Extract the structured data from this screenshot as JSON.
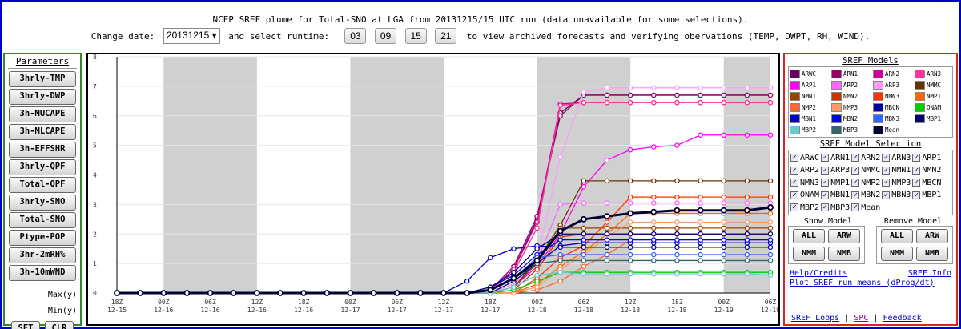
{
  "header": {
    "title": "NCEP SREF plume for Total-SNO at LGA from 20131215/15 UTC run (data unavailable for some selections).",
    "change_date_label": "Change date:",
    "date_value": "20131215",
    "select_runtime_label": "and select runtime:",
    "runtimes": [
      "03",
      "09",
      "15",
      "21"
    ],
    "trailing_text": "to view archived forecasts and verifying obervations (TEMP, DWPT, RH, WIND)."
  },
  "left_panel": {
    "heading": "Parameters",
    "buttons": [
      "3hrly-TMP",
      "3hrly-DWP",
      "3h-MUCAPE",
      "3h-MLCAPE",
      "3h-EFFSHR",
      "3hrly-QPF",
      "Total-QPF",
      "3hrly-SNO",
      "Total-SNO",
      "Ptype-POP",
      "3hr-2mRH%",
      "3h-10mWND"
    ],
    "max_label": "Max(y)",
    "min_label": "Min(y)",
    "set_label": "SET",
    "clr_label": "CLR"
  },
  "right_panel": {
    "models_heading": "SREF Models",
    "legend": [
      {
        "name": "ARWC",
        "color": "#660066"
      },
      {
        "name": "ARN1",
        "color": "#990066"
      },
      {
        "name": "ARN2",
        "color": "#cc0099"
      },
      {
        "name": "ARN3",
        "color": "#ff3399"
      },
      {
        "name": "ARP1",
        "color": "#ff00ff"
      },
      {
        "name": "ARP2",
        "color": "#ff66ff"
      },
      {
        "name": "ARP3",
        "color": "#ff99ff"
      },
      {
        "name": "NMMC",
        "color": "#663300"
      },
      {
        "name": "NMN1",
        "color": "#994400"
      },
      {
        "name": "NMN2",
        "color": "#cc3300"
      },
      {
        "name": "NMN3",
        "color": "#ff3300"
      },
      {
        "name": "NMP1",
        "color": "#ff6600"
      },
      {
        "name": "NMP2",
        "color": "#ff6633"
      },
      {
        "name": "NMP3",
        "color": "#ff9966"
      },
      {
        "name": "MBCN",
        "color": "#000099"
      },
      {
        "name": "ONAM",
        "color": "#00cc00"
      },
      {
        "name": "MBN1",
        "color": "#0000cc"
      },
      {
        "name": "MBN2",
        "color": "#0000ff"
      },
      {
        "name": "MBN3",
        "color": "#3366ff"
      },
      {
        "name": "MBP1",
        "color": "#000066"
      },
      {
        "name": "MBP2",
        "color": "#66cccc"
      },
      {
        "name": "MBP3",
        "color": "#336666"
      },
      {
        "name": "Mean",
        "color": "#000033"
      }
    ],
    "selection_heading": "SREF Model Selection",
    "selection": [
      "ARWC",
      "ARN1",
      "ARN2",
      "ARN3",
      "ARP1",
      "ARP2",
      "ARP3",
      "NMMC",
      "NMN1",
      "NMN2",
      "NMN3",
      "NMP1",
      "NMP2",
      "NMP3",
      "MBCN",
      "ONAM",
      "MBN1",
      "MBN2",
      "MBN3",
      "MBP1",
      "MBP2",
      "MBP3",
      "Mean"
    ],
    "show_model_label": "Show Model",
    "remove_model_label": "Remove Model",
    "show_buttons": [
      "ALL",
      "ARW",
      "NMM",
      "NMB"
    ],
    "remove_buttons": [
      "ALL",
      "ARW",
      "NMM",
      "NMB"
    ],
    "help_link": "Help/Credits",
    "sref_info_link": "SREF Info",
    "plot_means_link": "Plot SREF run means (dProg/dt)",
    "loops_link": "SREF Loops",
    "spc_link": "SPC",
    "feedback_link": "Feedback",
    "sep": "|"
  },
  "chart_data": {
    "type": "line",
    "ylim": [
      0,
      8
    ],
    "ytick_labels": [
      "0",
      "1",
      "2",
      "3",
      "4",
      "5",
      "6",
      "7",
      "8"
    ],
    "x_tick_labels": [
      [
        "18Z",
        "12-15"
      ],
      [
        "00Z",
        "12-16"
      ],
      [
        "06Z",
        "12-16"
      ],
      [
        "12Z",
        "12-16"
      ],
      [
        "18Z",
        "12-16"
      ],
      [
        "00Z",
        "12-17"
      ],
      [
        "06Z",
        "12-17"
      ],
      [
        "12Z",
        "12-17"
      ],
      [
        "18Z",
        "12-17"
      ],
      [
        "00Z",
        "12-18"
      ],
      [
        "06Z",
        "12-18"
      ],
      [
        "12Z",
        "12-18"
      ],
      [
        "18Z",
        "12-18"
      ],
      [
        "00Z",
        "12-19"
      ],
      [
        "06Z",
        "12-19"
      ]
    ],
    "night_shading": [
      [
        1,
        3
      ],
      [
        5,
        7
      ],
      [
        9,
        11
      ],
      [
        13,
        14
      ]
    ],
    "x_count": 29,
    "grid": true,
    "series": [
      {
        "name": "ARWC",
        "color": "#660066",
        "values": [
          0,
          0,
          0,
          0,
          0,
          0,
          0,
          0,
          0,
          0,
          0,
          0,
          0,
          0,
          0,
          0,
          0.1,
          0.8,
          2.5,
          6.1,
          6.7,
          6.7,
          6.7,
          6.7,
          6.7,
          6.7,
          6.7,
          6.7,
          6.7
        ]
      },
      {
        "name": "ARN1",
        "color": "#990066",
        "values": [
          0,
          0,
          0,
          0,
          0,
          0,
          0,
          0,
          0,
          0,
          0,
          0,
          0,
          0,
          0,
          0,
          0.1,
          0.9,
          2.6,
          6.0,
          6.7,
          6.7,
          6.7,
          6.7,
          6.7,
          6.7,
          6.7,
          6.7,
          6.7
        ]
      },
      {
        "name": "ARN2",
        "color": "#cc0099",
        "values": [
          0,
          0,
          0,
          0,
          0,
          0,
          0,
          0,
          0,
          0,
          0,
          0,
          0,
          0,
          0,
          0,
          0.1,
          0.8,
          2.4,
          6.4,
          6.45,
          6.45,
          6.45,
          6.45,
          6.45,
          6.45,
          6.45,
          6.45,
          6.45
        ]
      },
      {
        "name": "ARN3",
        "color": "#ff3399",
        "values": [
          0,
          0,
          0,
          0,
          0,
          0,
          0,
          0,
          0,
          0,
          0,
          0,
          0,
          0,
          0,
          0,
          0.1,
          0.7,
          2.2,
          6.35,
          6.45,
          6.45,
          6.45,
          6.45,
          6.45,
          6.45,
          6.45,
          6.45,
          6.45
        ]
      },
      {
        "name": "ARP1",
        "color": "#ff00ff",
        "values": [
          0,
          0,
          0,
          0,
          0,
          0,
          0,
          0,
          0,
          0,
          0,
          0,
          0,
          0,
          0,
          0,
          0,
          0.2,
          0.9,
          2.0,
          3.6,
          4.5,
          4.85,
          4.95,
          5.0,
          5.35,
          5.35,
          5.35,
          5.35
        ]
      },
      {
        "name": "ARP2",
        "color": "#ff66ff",
        "values": [
          0,
          0,
          0,
          0,
          0,
          0,
          0,
          0,
          0,
          0,
          0,
          0,
          0,
          0,
          0,
          0,
          0,
          0.3,
          1.1,
          3.0,
          3.05,
          3.05,
          3.05,
          3.05,
          3.05,
          3.05,
          3.05,
          3.05,
          3.05
        ]
      },
      {
        "name": "ARP3",
        "color": "#ff99ff",
        "values": [
          0,
          0,
          0,
          0,
          0,
          0,
          0,
          0,
          0,
          0,
          0,
          0,
          0,
          0,
          0,
          0,
          0,
          0.3,
          1.2,
          4.6,
          6.8,
          6.95,
          6.95,
          6.95,
          6.95,
          6.95,
          6.95,
          6.95,
          6.95
        ]
      },
      {
        "name": "NMMC",
        "color": "#663300",
        "values": [
          0,
          0,
          0,
          0,
          0,
          0,
          0,
          0,
          0,
          0,
          0,
          0,
          0,
          0,
          0,
          0,
          0,
          0.2,
          1.1,
          2.3,
          3.8,
          3.8,
          3.8,
          3.8,
          3.8,
          3.8,
          3.8,
          3.8,
          3.8
        ]
      },
      {
        "name": "NMN1",
        "color": "#994400",
        "values": [
          0,
          0,
          0,
          0,
          0,
          0,
          0,
          0,
          0,
          0,
          0,
          0,
          0,
          0,
          0,
          0,
          0,
          0.2,
          1.0,
          2.2,
          2.2,
          2.2,
          2.2,
          2.2,
          2.2,
          2.2,
          2.2,
          2.2,
          2.2
        ]
      },
      {
        "name": "NMN2",
        "color": "#cc3300",
        "values": [
          0,
          0,
          0,
          0,
          0,
          0,
          0,
          0,
          0,
          0,
          0,
          0,
          0,
          0,
          0,
          0,
          0,
          0.1,
          0.8,
          1.9,
          2.0,
          2.0,
          2.0,
          2.0,
          2.0,
          2.0,
          2.0,
          2.0,
          2.0
        ]
      },
      {
        "name": "NMN3",
        "color": "#ff3300",
        "values": [
          0,
          0,
          0,
          0,
          0,
          0,
          0,
          0,
          0,
          0,
          0,
          0,
          0,
          0,
          0,
          0,
          0,
          0,
          0.5,
          1.2,
          1.6,
          2.4,
          3.25,
          3.25,
          3.25,
          3.25,
          3.25,
          3.25,
          3.25
        ]
      },
      {
        "name": "NMP1",
        "color": "#ff6600",
        "values": [
          0,
          0,
          0,
          0,
          0,
          0,
          0,
          0,
          0,
          0,
          0,
          0,
          0,
          0,
          0,
          0,
          0,
          0,
          0.3,
          0.9,
          1.4,
          2.0,
          2.7,
          2.7,
          2.7,
          2.7,
          2.7,
          2.7,
          2.7
        ]
      },
      {
        "name": "NMP2",
        "color": "#ff6633",
        "values": [
          0,
          0,
          0,
          0,
          0,
          0,
          0,
          0,
          0,
          0,
          0,
          0,
          0,
          0,
          0,
          0,
          0,
          0,
          0.1,
          0.4,
          0.9,
          1.3,
          1.8,
          1.8,
          1.8,
          1.8,
          1.8,
          1.8,
          1.8
        ]
      },
      {
        "name": "NMP3",
        "color": "#ff9966",
        "values": [
          0,
          0,
          0,
          0,
          0,
          0,
          0,
          0,
          0,
          0,
          0,
          0,
          0,
          0,
          0,
          0,
          0,
          0,
          0.2,
          0.8,
          1.3,
          1.9,
          2.4,
          2.4,
          2.4,
          2.4,
          2.4,
          2.4,
          2.4
        ]
      },
      {
        "name": "MBCN",
        "color": "#000099",
        "values": [
          0,
          0,
          0,
          0,
          0,
          0,
          0,
          0,
          0,
          0,
          0,
          0,
          0,
          0,
          0,
          0,
          0,
          0.4,
          1.0,
          1.6,
          1.7,
          1.7,
          1.7,
          1.7,
          1.7,
          1.7,
          1.7,
          1.7,
          1.7
        ]
      },
      {
        "name": "ONAM",
        "color": "#00cc00",
        "values": [
          0,
          0,
          0,
          0,
          0,
          0,
          0,
          0,
          0,
          0,
          0,
          0,
          0,
          0,
          0,
          0,
          0,
          0.1,
          0.4,
          0.7,
          0.7,
          0.7,
          0.7,
          0.7,
          0.7,
          0.7,
          0.7,
          0.7,
          0.7
        ]
      },
      {
        "name": "MBN1",
        "color": "#0000cc",
        "values": [
          0,
          0,
          0,
          0,
          0,
          0,
          0,
          0,
          0,
          0,
          0,
          0,
          0,
          0,
          0,
          0.4,
          1.2,
          1.5,
          1.6,
          1.55,
          1.55,
          1.55,
          1.55,
          1.55,
          1.55,
          1.55,
          1.55,
          1.55,
          1.55
        ]
      },
      {
        "name": "MBN2",
        "color": "#0000ff",
        "values": [
          0,
          0,
          0,
          0,
          0,
          0,
          0,
          0,
          0,
          0,
          0,
          0,
          0,
          0,
          0,
          0,
          0.2,
          0.6,
          1.3,
          1.8,
          1.8,
          1.8,
          1.8,
          1.8,
          1.8,
          1.8,
          1.8,
          1.8,
          1.8
        ]
      },
      {
        "name": "MBN3",
        "color": "#3366ff",
        "values": [
          0,
          0,
          0,
          0,
          0,
          0,
          0,
          0,
          0,
          0,
          0,
          0,
          0,
          0,
          0,
          0,
          0.1,
          0.5,
          1.2,
          1.3,
          1.3,
          1.3,
          1.3,
          1.3,
          1.3,
          1.3,
          1.3,
          1.3,
          1.3
        ]
      },
      {
        "name": "MBP1",
        "color": "#000066",
        "values": [
          0,
          0,
          0,
          0,
          0,
          0,
          0,
          0,
          0,
          0,
          0,
          0,
          0,
          0,
          0,
          0,
          0.2,
          0.7,
          1.5,
          2.0,
          2.0,
          2.0,
          2.0,
          2.0,
          2.0,
          2.0,
          2.0,
          2.0,
          2.0
        ]
      },
      {
        "name": "MBP2",
        "color": "#66cccc",
        "values": [
          0,
          0,
          0,
          0,
          0,
          0,
          0,
          0,
          0,
          0,
          0,
          0,
          0,
          0,
          0,
          0,
          0,
          0.2,
          0.6,
          0.7,
          0.65,
          0.65,
          0.65,
          0.65,
          0.65,
          0.65,
          0.65,
          0.65,
          0.6
        ]
      },
      {
        "name": "MBP3",
        "color": "#336666",
        "values": [
          0,
          0,
          0,
          0,
          0,
          0,
          0,
          0,
          0,
          0,
          0,
          0,
          0,
          0,
          0,
          0,
          0.1,
          0.5,
          1.0,
          1.1,
          1.1,
          1.1,
          1.1,
          1.1,
          1.1,
          1.1,
          1.1,
          1.1,
          1.1
        ]
      },
      {
        "name": "Mean",
        "color": "#000033",
        "values": [
          0,
          0,
          0,
          0,
          0,
          0,
          0,
          0,
          0,
          0,
          0,
          0,
          0,
          0,
          0,
          0,
          0.1,
          0.5,
          1.1,
          2.1,
          2.5,
          2.6,
          2.7,
          2.75,
          2.8,
          2.8,
          2.8,
          2.8,
          2.9
        ]
      }
    ]
  }
}
